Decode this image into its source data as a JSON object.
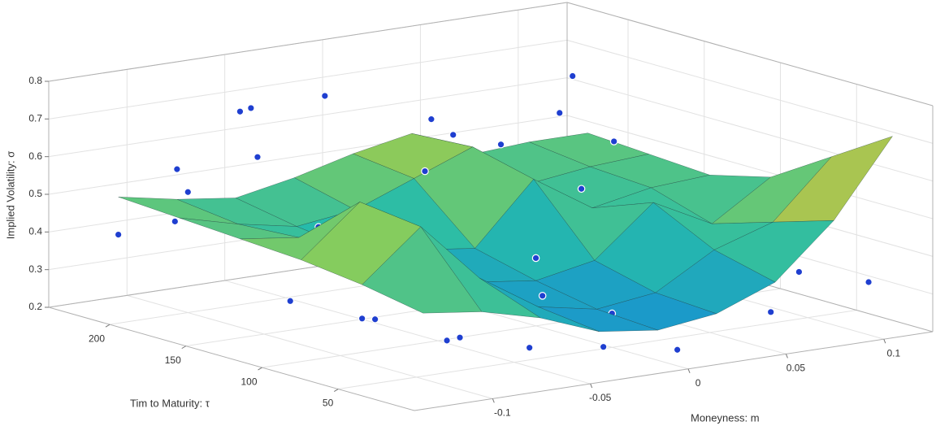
{
  "chart_data": {
    "type": "surface-scatter",
    "zlabel": "Implied Volatility: σ",
    "tlabel": "Tim to Maturity: τ",
    "mlabel": "Moneyness: m",
    "zlim": [
      0.2,
      0.8
    ],
    "zticks": [
      0.2,
      0.3,
      0.4,
      0.5,
      0.6,
      0.7,
      0.8
    ],
    "tlim": [
      0,
      240
    ],
    "tticks": [
      50,
      100,
      150,
      200
    ],
    "mlim": [
      -0.14,
      0.125
    ],
    "mticks": [
      -0.1,
      -0.05,
      0,
      0.05,
      0.1
    ],
    "grid": true,
    "surface": {
      "m": [
        -0.12,
        -0.09,
        -0.06,
        -0.03,
        0,
        0.03,
        0.06,
        0.09,
        0.12
      ],
      "t": [
        20,
        60,
        100,
        140,
        180,
        220
      ],
      "z": [
        [
          0.42,
          0.4,
          0.36,
          0.3,
          0.28,
          0.3,
          0.36,
          0.5,
          0.7
        ],
        [
          0.45,
          0.58,
          0.42,
          0.32,
          0.29,
          0.31,
          0.4,
          0.45,
          0.6
        ],
        [
          0.47,
          0.6,
          0.44,
          0.34,
          0.32,
          0.35,
          0.48,
          0.4,
          0.5
        ],
        [
          0.48,
          0.46,
          0.4,
          0.38,
          0.36,
          0.52,
          0.42,
          0.45,
          0.46
        ],
        [
          0.49,
          0.45,
          0.42,
          0.44,
          0.5,
          0.56,
          0.44,
          0.46,
          0.47
        ],
        [
          0.5,
          0.47,
          0.45,
          0.48,
          0.52,
          0.55,
          0.47,
          0.48,
          0.48
        ]
      ]
    },
    "scatter": {
      "color": "#1f3fd0",
      "m": [
        -0.12,
        -0.1,
        -0.08,
        -0.06,
        -0.03,
        -0.11,
        -0.09,
        -0.07,
        -0.05,
        -0.02,
        0.01,
        0.03,
        0.05,
        0.07,
        0.09,
        0.11,
        0.12,
        0.1,
        0.08,
        -0.04,
        -0.01,
        0.02,
        0.04,
        0.06,
        -0.12,
        -0.1,
        0.0,
        0.02,
        -0.06,
        -0.08,
        0.05,
        0.1,
        -0.02,
        0.07,
        -0.05,
        0.12,
        -0.13,
        0.0,
        0.09,
        -0.09
      ],
      "t": [
        220,
        200,
        180,
        210,
        200,
        120,
        90,
        60,
        40,
        30,
        20,
        50,
        80,
        110,
        150,
        190,
        230,
        60,
        30,
        140,
        160,
        180,
        220,
        200,
        60,
        30,
        100,
        130,
        100,
        140,
        10,
        10,
        70,
        160,
        230,
        100,
        170,
        50,
        200,
        220
      ],
      "z": [
        0.4,
        0.52,
        0.62,
        0.7,
        0.72,
        0.33,
        0.3,
        0.27,
        0.25,
        0.24,
        0.22,
        0.28,
        0.3,
        0.35,
        0.4,
        0.5,
        0.62,
        0.42,
        0.36,
        0.45,
        0.55,
        0.6,
        0.58,
        0.52,
        0.36,
        0.32,
        0.38,
        0.46,
        0.41,
        0.48,
        0.3,
        0.34,
        0.33,
        0.44,
        0.66,
        0.45,
        0.5,
        0.29,
        0.58,
        0.55
      ]
    }
  }
}
